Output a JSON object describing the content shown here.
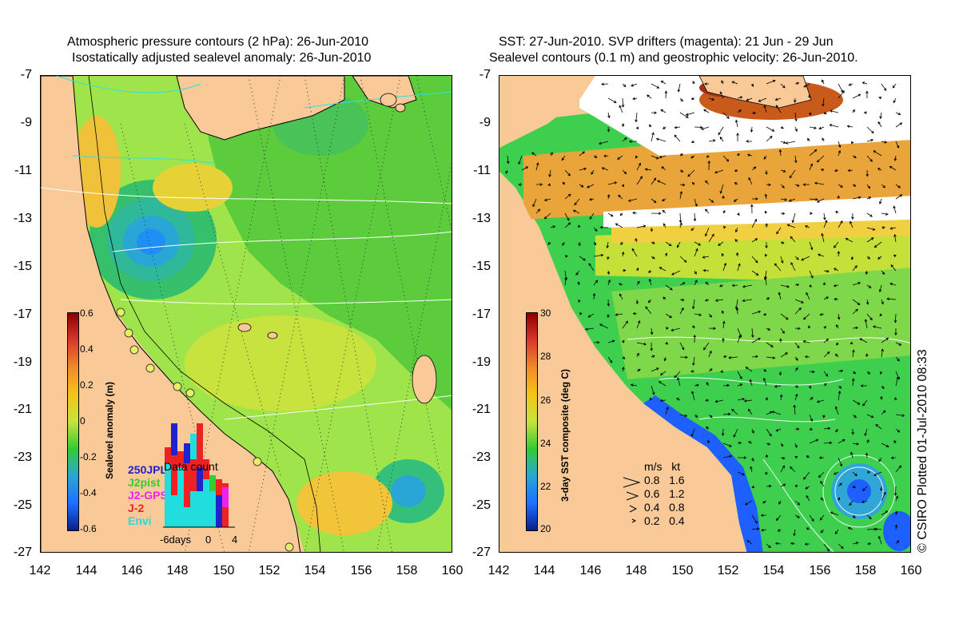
{
  "left_panel": {
    "title_line1": "Atmospheric pressure contours (2 hPa): 26-Jun-2010",
    "title_line2": "Isostatically adjusted sealevel anomaly: 26-Jun-2010",
    "colorbar": {
      "title": "Sealevel anomaly (m)",
      "ticks": [
        "0.6",
        "0.4",
        "0.2",
        "0",
        "-0.2",
        "-0.4",
        "-0.6"
      ]
    },
    "legend": {
      "entries": [
        {
          "label": "250JPL",
          "color": "#2222cc"
        },
        {
          "label": "J2pist",
          "color": "#33cc33"
        },
        {
          "label": "J2-GPS",
          "color": "#ee22ee"
        },
        {
          "label": "J-2",
          "color": "#ee2222"
        },
        {
          "label": "Envi",
          "color": "#22dddd"
        }
      ],
      "histogram_title": "Data count",
      "histogram_axis": [
        "-6days",
        "0",
        "4"
      ]
    }
  },
  "right_panel": {
    "title_line1": "SST: 27-Jun-2010. SVP drifters (magenta): 21 Jun - 29 Jun",
    "title_line2": "Sealevel contours (0.1 m) and geostrophic velocity: 26-Jun-2010.",
    "colorbar": {
      "title": "3-day SST composite (deg C)",
      "ticks": [
        "30",
        "28",
        "26",
        "24",
        "22",
        "20"
      ]
    },
    "velocity_legend": {
      "header": "m/s   kt",
      "rows": [
        "0.8   1.6",
        "0.6   1.2",
        "0.4   0.8",
        "0.2   0.4"
      ]
    }
  },
  "axes": {
    "y_ticks": [
      "-7",
      "-9",
      "-11",
      "-13",
      "-15",
      "-17",
      "-19",
      "-21",
      "-23",
      "-25",
      "-27"
    ],
    "x_ticks": [
      "142",
      "144",
      "146",
      "148",
      "150",
      "152",
      "154",
      "156",
      "158",
      "160"
    ]
  },
  "side_note": "© CSIRO Plotted 01-Jul-2010 08:33",
  "colors": {
    "land": "#f9c998",
    "sealevel_low": "#1e90ff",
    "sealevel_mid": "#33cc33",
    "sealevel_high": "#f5c518",
    "sst_cold": "#1e60ff",
    "sst_warm": "#e8a020"
  }
}
